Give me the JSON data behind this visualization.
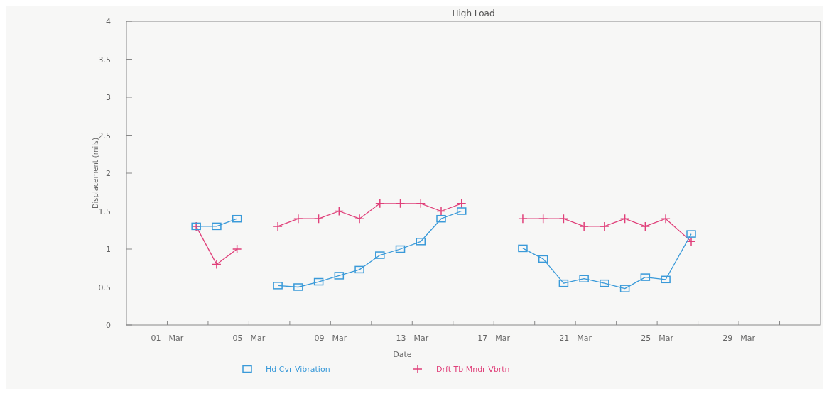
{
  "chart_data": {
    "type": "line",
    "title": "High Load",
    "xlabel": "Date",
    "ylabel": "Displacement (mils)",
    "x": [
      "--03-02T10:00",
      "--03-03T10:00",
      "--03-04T10:00",
      "--03-05T10:00",
      "--03-06T10:00",
      "--03-07T10:00",
      "--03-08T10:00",
      "--03-09T10:00",
      "--03-10T10:00",
      "--03-11T10:00",
      "--03-12T10:00",
      "--03-13T10:00",
      "--03-14T10:00",
      "--03-15T10:00",
      "--03-16T10:00",
      "--03-18T10:00",
      "--03-19T10:00",
      "--03-20T10:00",
      "--03-21T10:00",
      "--03-22T10:00",
      "--03-23T10:00",
      "--03-24T10:00",
      "--03-25T10:00",
      "--03-26T16:00"
    ],
    "series": [
      {
        "name": "Hd Cvr Vibration",
        "color": "#3a9ad9",
        "marker": "square",
        "values": [
          1.3,
          1.3,
          1.4,
          null,
          0.52,
          0.5,
          0.57,
          0.65,
          0.73,
          0.92,
          1.0,
          1.1,
          1.4,
          1.5,
          null,
          1.01,
          0.87,
          0.55,
          0.61,
          0.55,
          0.48,
          0.63,
          0.6,
          1.2
        ]
      },
      {
        "name": "Drft Tb Mndr Vbrtn",
        "color": "#e0407a",
        "marker": "cross",
        "values": [
          1.3,
          0.8,
          1.0,
          null,
          1.3,
          1.4,
          1.4,
          1.5,
          1.4,
          1.6,
          1.6,
          1.6,
          1.5,
          1.6,
          null,
          1.4,
          1.4,
          1.4,
          1.3,
          1.3,
          1.4,
          1.3,
          1.4,
          1.1
        ]
      }
    ],
    "xlim": [
      "--02-27",
      "--04-02"
    ],
    "xticks": [
      {
        "value": "--03-01",
        "label": "01—Mar"
      },
      {
        "value": "--03-03",
        "label": null
      },
      {
        "value": "--03-05",
        "label": "05—Mar"
      },
      {
        "value": "--03-07",
        "label": null
      },
      {
        "value": "--03-09",
        "label": "09—Mar"
      },
      {
        "value": "--03-11",
        "label": null
      },
      {
        "value": "--03-13",
        "label": "13—Mar"
      },
      {
        "value": "--03-15",
        "label": null
      },
      {
        "value": "--03-17",
        "label": "17—Mar"
      },
      {
        "value": "--03-19",
        "label": null
      },
      {
        "value": "--03-21",
        "label": "21—Mar"
      },
      {
        "value": "--03-23",
        "label": null
      },
      {
        "value": "--03-25",
        "label": "25—Mar"
      },
      {
        "value": "--03-27",
        "label": null
      },
      {
        "value": "--03-29",
        "label": "29—Mar"
      },
      {
        "value": "--03-31",
        "label": null
      }
    ],
    "ylim": [
      0,
      4
    ],
    "yticks": [
      0,
      0.5,
      1,
      1.5,
      2,
      2.5,
      3,
      3.5,
      4
    ],
    "grid": false,
    "legend": "bottom",
    "line_style": "solid"
  }
}
